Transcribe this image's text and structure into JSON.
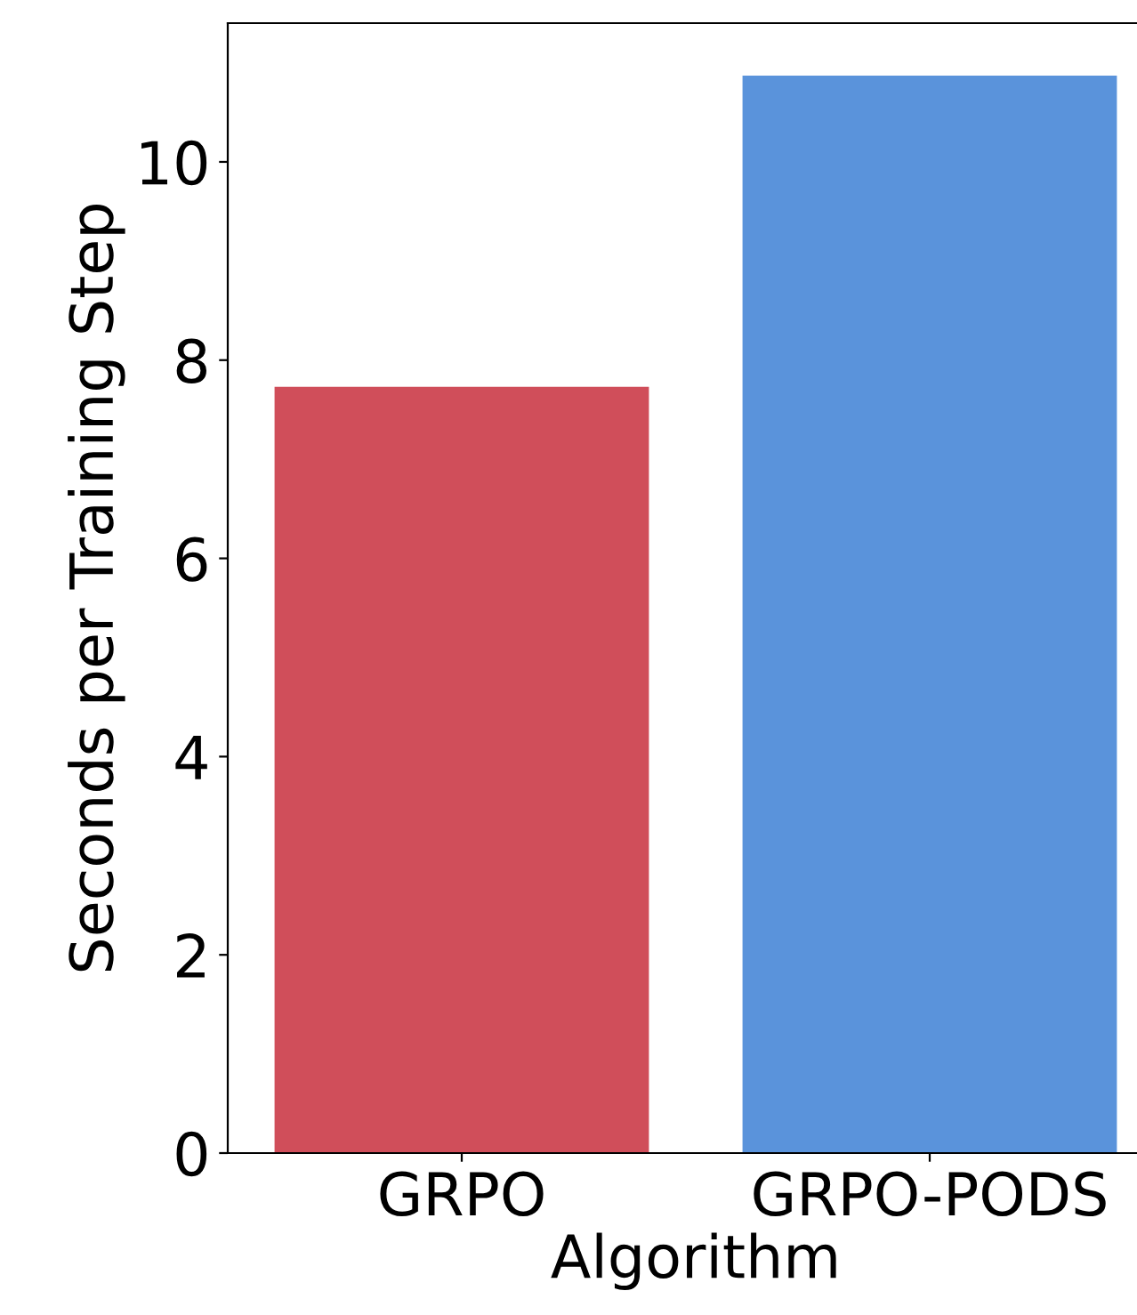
{
  "chart_data": {
    "type": "bar",
    "xlabel": "Algorithm",
    "ylabel": "Seconds per Training Step",
    "categories": [
      "GRPO",
      "GRPO-PODS"
    ],
    "values": [
      7.73,
      10.87
    ],
    "colors": [
      "#d04e5a",
      "#5a93db"
    ],
    "ylim": [
      0,
      11.4
    ],
    "yticks": [
      0,
      2,
      4,
      6,
      8,
      10
    ],
    "grid": false,
    "legend": false
  }
}
